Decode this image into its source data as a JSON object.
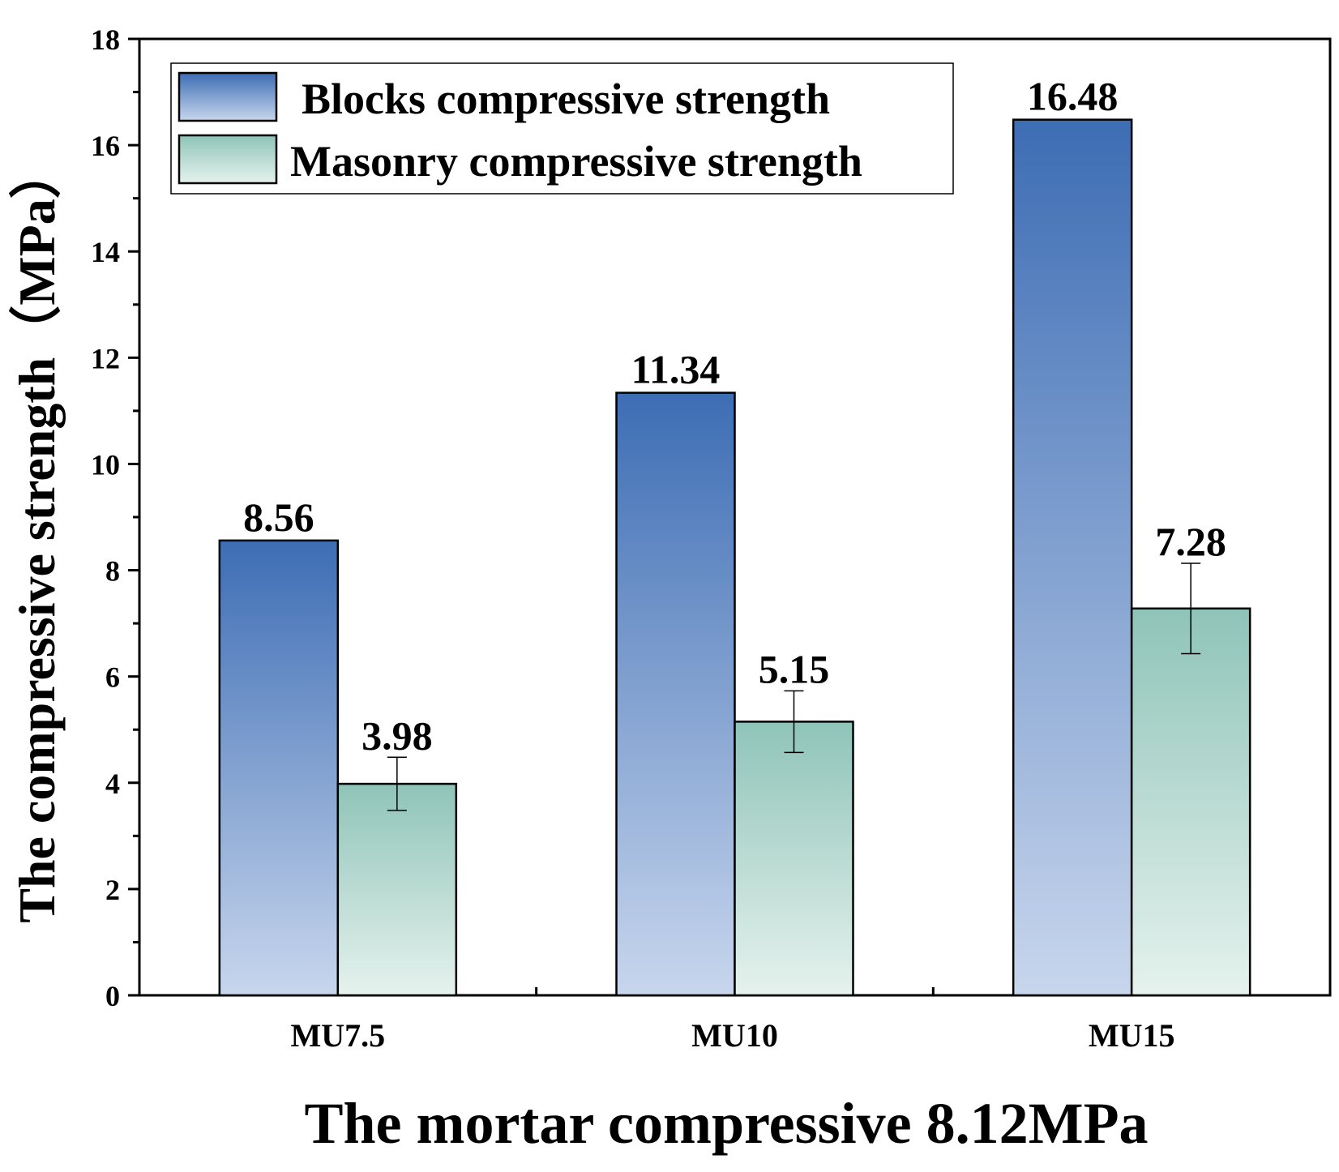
{
  "chart_data": {
    "type": "bar",
    "xlabel": "The mortar compressive 8.12MPa",
    "ylabel": "The compressive strength（MPa）",
    "categories": [
      "MU7.5",
      "MU10",
      "MU15"
    ],
    "ylim": [
      0,
      18
    ],
    "yticks": [
      0,
      2,
      4,
      6,
      8,
      10,
      12,
      14,
      16,
      18
    ],
    "legend_position": "top-left",
    "series": [
      {
        "name": "Blocks compressive strength",
        "values": [
          8.56,
          11.34,
          16.48
        ],
        "value_labels": [
          "8.56",
          "11.34",
          "16.48"
        ],
        "color_top": "#3d6db4",
        "color_bottom": "#c8d6ed",
        "error": null
      },
      {
        "name": "Masonry compressive strength",
        "values": [
          3.98,
          5.15,
          7.28
        ],
        "value_labels": [
          "3.98",
          "5.15",
          "7.28"
        ],
        "color_top": "#8fc4b8",
        "color_bottom": "#e6f2ee",
        "error": [
          0.5,
          0.58,
          0.85
        ]
      }
    ]
  }
}
